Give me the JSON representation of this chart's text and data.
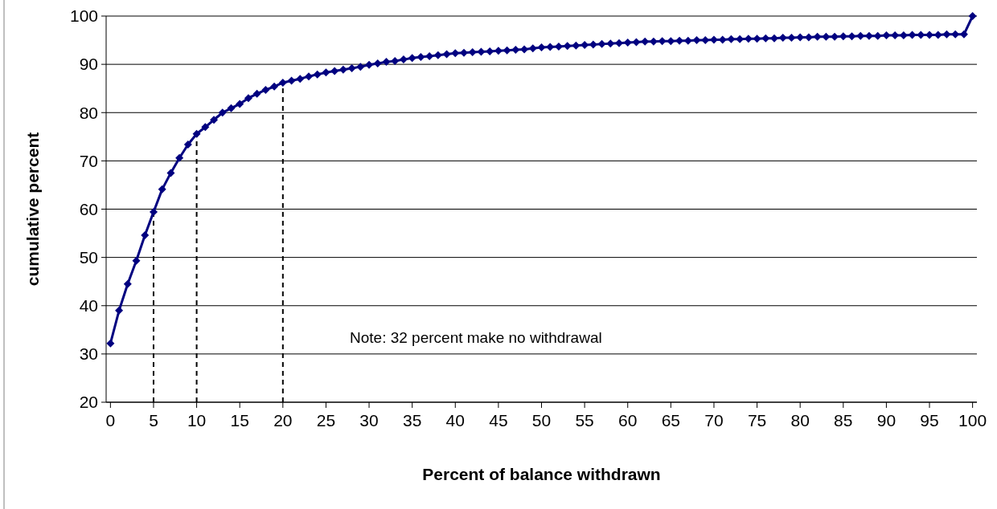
{
  "chart_data": {
    "type": "line",
    "xlabel": "Percent of balance withdrawn",
    "ylabel": "cumulative percent",
    "annotations": [
      "Note:  32 percent make no withdrawal"
    ],
    "x": [
      0,
      1,
      2,
      3,
      4,
      5,
      6,
      7,
      8,
      9,
      10,
      11,
      12,
      13,
      14,
      15,
      16,
      17,
      18,
      19,
      20,
      21,
      22,
      23,
      24,
      25,
      26,
      27,
      28,
      29,
      30,
      31,
      32,
      33,
      34,
      35,
      36,
      37,
      38,
      39,
      40,
      41,
      42,
      43,
      44,
      45,
      46,
      47,
      48,
      49,
      50,
      51,
      52,
      53,
      54,
      55,
      56,
      57,
      58,
      59,
      60,
      61,
      62,
      63,
      64,
      65,
      66,
      67,
      68,
      69,
      70,
      71,
      72,
      73,
      74,
      75,
      76,
      77,
      78,
      79,
      80,
      81,
      82,
      83,
      84,
      85,
      86,
      87,
      88,
      89,
      90,
      91,
      92,
      93,
      94,
      95,
      96,
      97,
      98,
      99,
      100
    ],
    "series": [
      {
        "color": "#000080",
        "values": [
          32.2,
          39,
          44.5,
          49.3,
          54.6,
          59.4,
          64.1,
          67.5,
          70.6,
          73.4,
          75.6,
          77,
          78.5,
          80,
          80.9,
          81.8,
          83,
          83.9,
          84.7,
          85.4,
          86.2,
          86.6,
          87,
          87.5,
          87.9,
          88.3,
          88.6,
          88.9,
          89.2,
          89.5,
          89.9,
          90.2,
          90.5,
          90.7,
          91,
          91.3,
          91.5,
          91.7,
          91.9,
          92.1,
          92.3,
          92.4,
          92.5,
          92.6,
          92.7,
          92.8,
          92.9,
          93,
          93.1,
          93.3,
          93.5,
          93.6,
          93.7,
          93.8,
          93.9,
          94,
          94.1,
          94.2,
          94.3,
          94.4,
          94.5,
          94.6,
          94.7,
          94.7,
          94.8,
          94.8,
          94.9,
          94.9,
          95,
          95,
          95.1,
          95.1,
          95.2,
          95.2,
          95.3,
          95.3,
          95.4,
          95.4,
          95.5,
          95.5,
          95.6,
          95.6,
          95.7,
          95.7,
          95.7,
          95.8,
          95.8,
          95.9,
          95.9,
          95.9,
          96,
          96,
          96,
          96.1,
          96.1,
          96.1,
          96.1,
          96.2,
          96.2,
          96.2,
          100
        ]
      }
    ],
    "xlim": [
      -0.5,
      100.5
    ],
    "xticks": [
      0,
      5,
      10,
      15,
      20,
      25,
      30,
      35,
      40,
      45,
      50,
      55,
      60,
      65,
      70,
      75,
      80,
      85,
      90,
      95,
      100
    ],
    "ylim": [
      20,
      100
    ],
    "yticks": [
      20,
      30,
      40,
      50,
      60,
      70,
      80,
      90,
      100
    ],
    "grid": "y",
    "marker": "diamond",
    "line_style": "solid",
    "ref_lines": [
      {
        "axis": "x",
        "value": 5,
        "color": "#000000",
        "line_style": "dashed"
      },
      {
        "axis": "x",
        "value": 10,
        "color": "#000000",
        "line_style": "dashed"
      },
      {
        "axis": "x",
        "value": 20,
        "color": "#000000",
        "line_style": "dashed"
      }
    ]
  }
}
